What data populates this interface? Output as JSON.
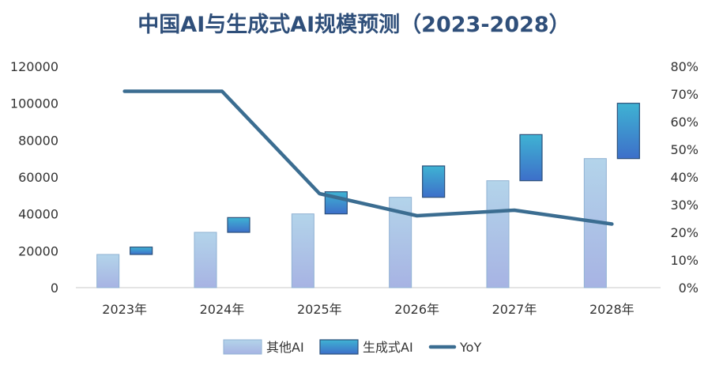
{
  "chart_data": {
    "type": "bar",
    "title": "中国AI与生成式AI规模预测（2023-2028）",
    "categories": [
      "2023年",
      "2024年",
      "2025年",
      "2026年",
      "2027年",
      "2028年"
    ],
    "series": [
      {
        "name": "其他AI",
        "kind": "bar",
        "axis": "left",
        "values": [
          18000,
          30000,
          40000,
          49000,
          58000,
          70000
        ]
      },
      {
        "name": "生成式AI",
        "kind": "floating-bar",
        "axis": "left",
        "values": [
          4000,
          8000,
          12000,
          17000,
          25000,
          30000
        ]
      },
      {
        "name": "YoY",
        "kind": "line",
        "axis": "right",
        "values": [
          0.71,
          0.71,
          0.34,
          0.26,
          0.28,
          0.23
        ]
      }
    ],
    "y_left": {
      "min": 0,
      "max": 120000,
      "ticks": [
        "0",
        "20000",
        "40000",
        "60000",
        "80000",
        "100000",
        "120000"
      ]
    },
    "y_right": {
      "min": 0,
      "max": 0.8,
      "ticks": [
        "0%",
        "10%",
        "20%",
        "30%",
        "40%",
        "50%",
        "60%",
        "70%",
        "80%"
      ]
    },
    "grid": false,
    "legend_position": "bottom",
    "colors": {
      "other_ai": "#a9cbe6",
      "gen_ai": "#2e8fc7",
      "yoy": "#3b6d91",
      "title": "#2f4f7a"
    }
  }
}
